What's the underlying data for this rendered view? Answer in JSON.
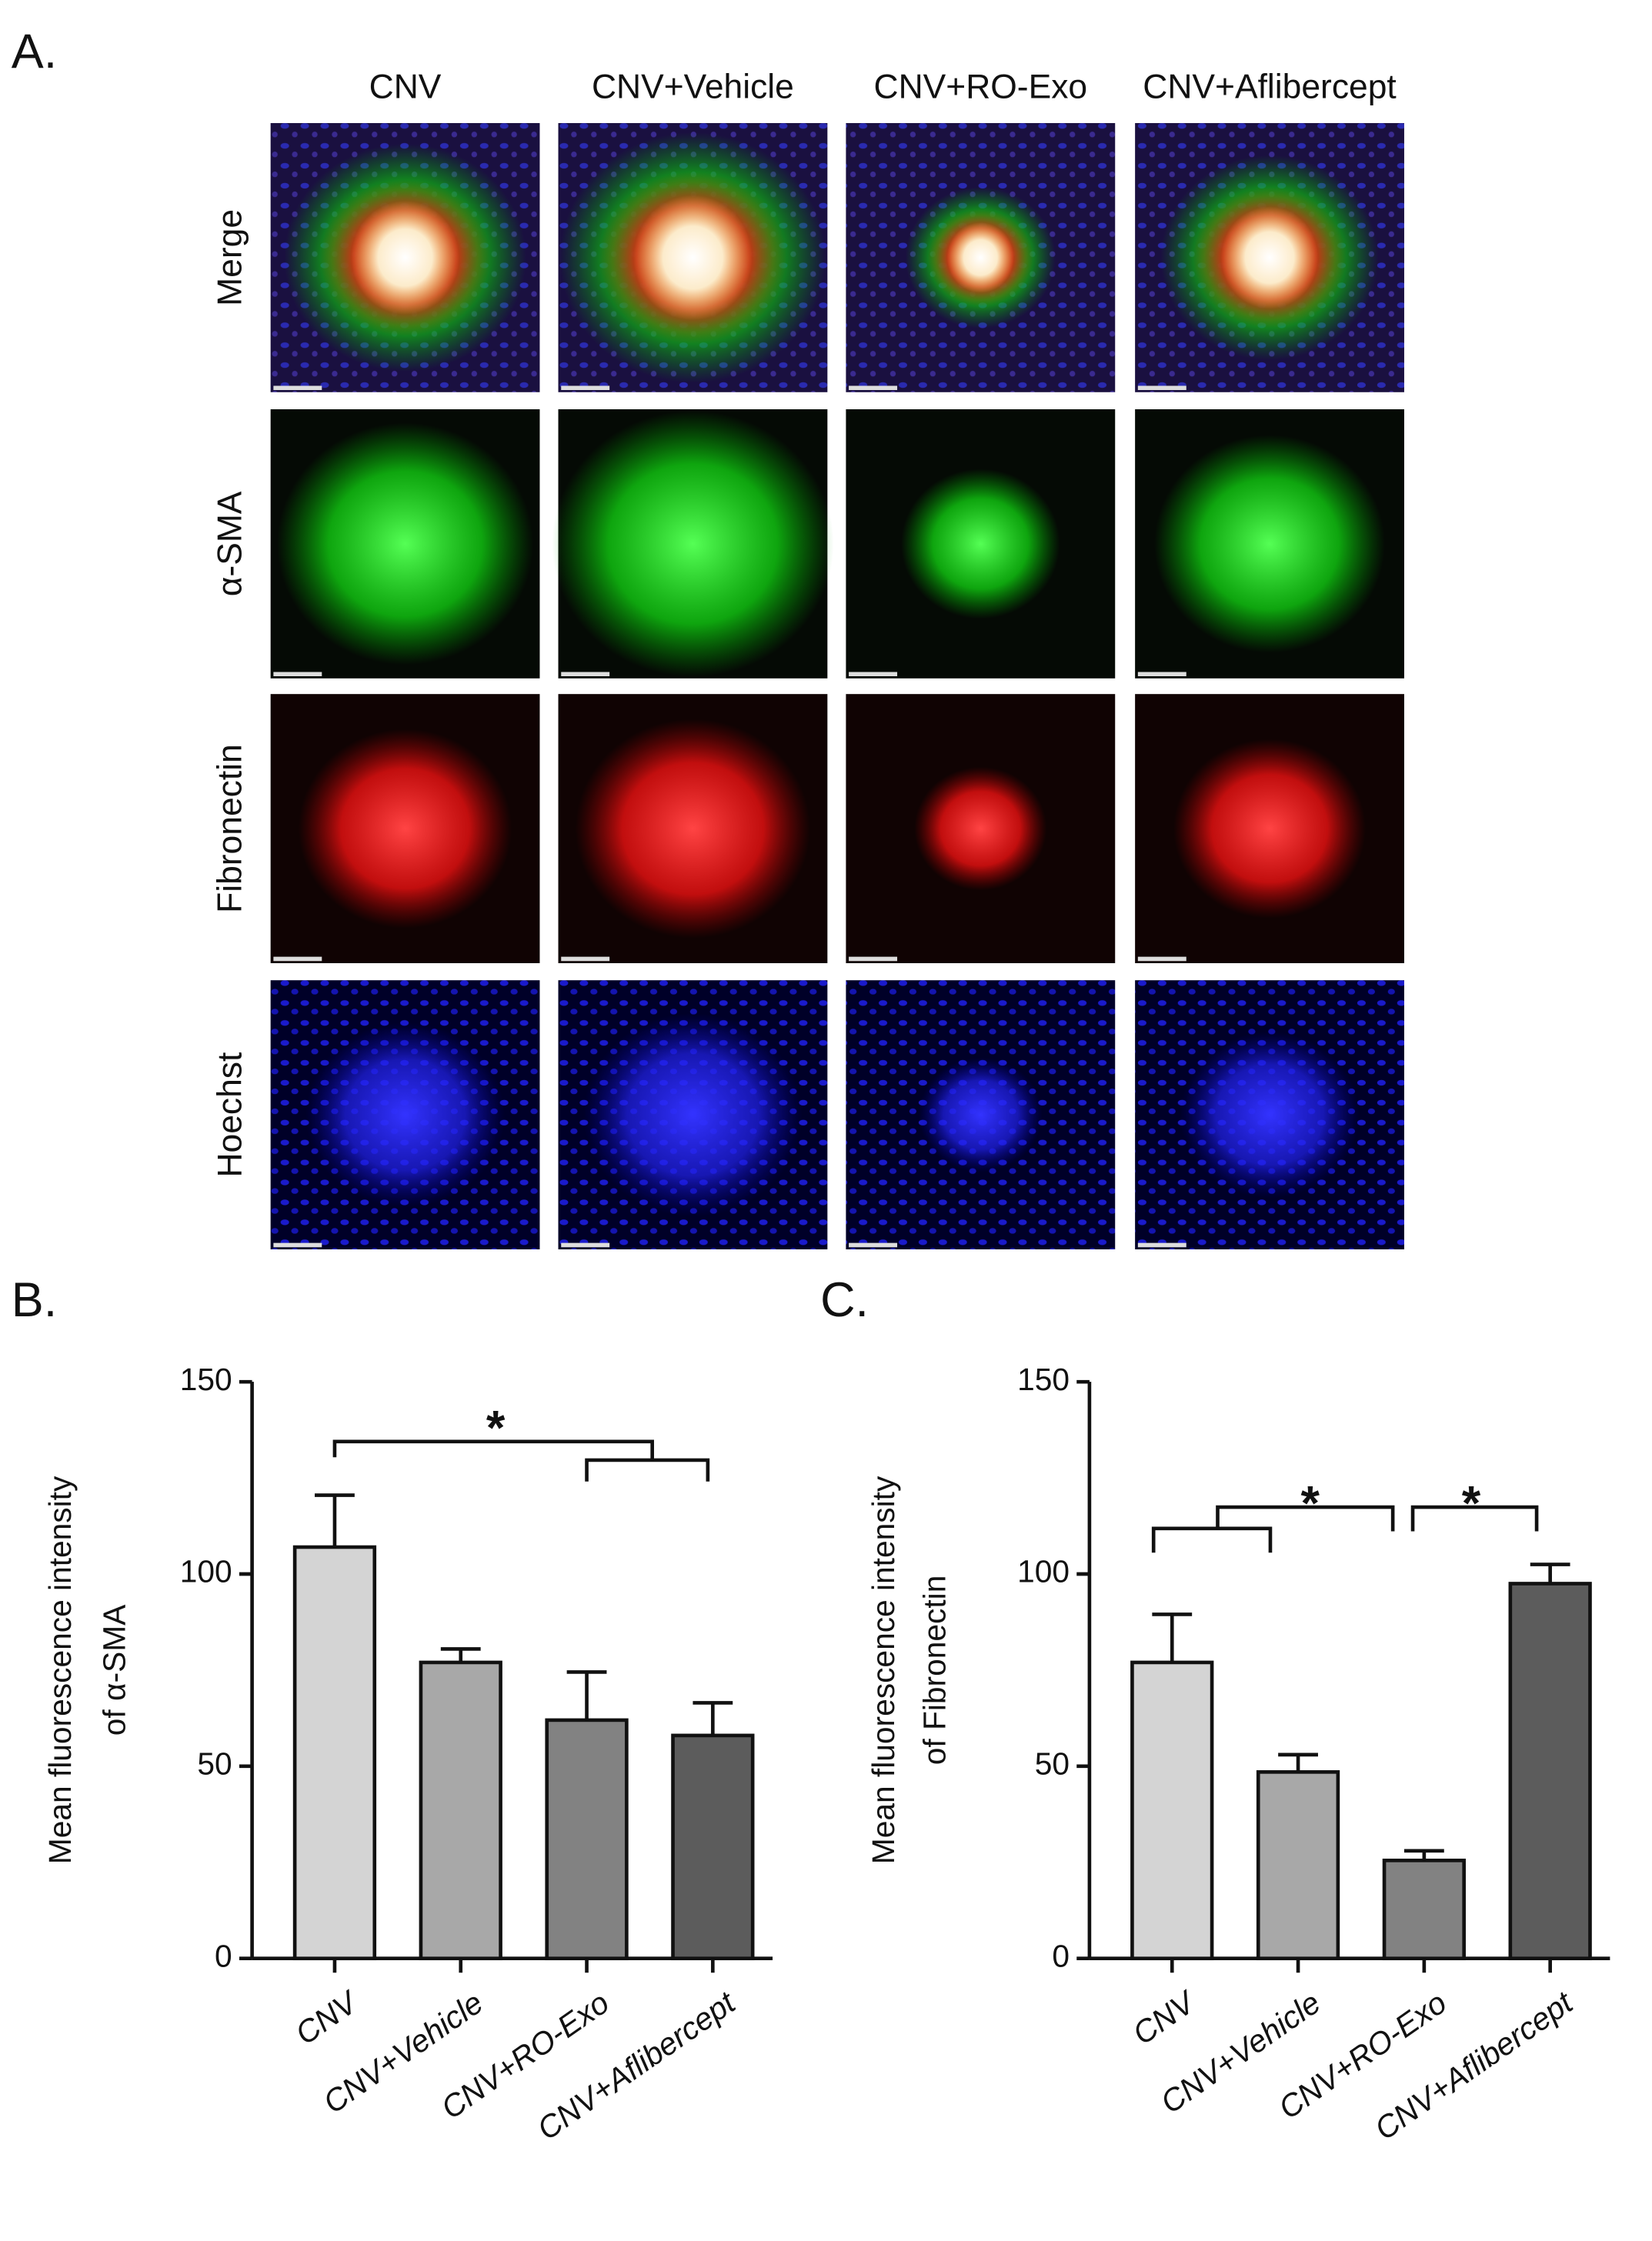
{
  "panel_a": {
    "label": "A.",
    "columns": [
      "CNV",
      "CNV+Vehicle",
      "CNV+RO-Exo",
      "CNV+Aflibercept"
    ],
    "rows": [
      {
        "label": "Merge",
        "color": "#111111"
      },
      {
        "label": "α-SMA",
        "color": "#22cc22"
      },
      {
        "label": "Fibronectin",
        "color": "#ee1111"
      },
      {
        "label": "Hoechst",
        "color": "#1a1aff"
      }
    ]
  },
  "chart_data": [
    {
      "type": "bar",
      "panel_label": "B.",
      "ylabel": [
        "Mean fluorescence intensity",
        "of  α-SMA"
      ],
      "categories": [
        "CNV",
        "CNV+Vehicle",
        "CNV+RO-Exo",
        "CNV+Aflibercept"
      ],
      "values": [
        107,
        77,
        62,
        58
      ],
      "errors": [
        13.5,
        3.5,
        12.5,
        8.5
      ],
      "colors": [
        "#d4d4d4",
        "#a8a8a8",
        "#828282",
        "#5c5c5c"
      ],
      "ylim": [
        0,
        150
      ],
      "yticks": [
        0,
        50,
        100,
        150
      ],
      "annotations": [
        "*"
      ]
    },
    {
      "type": "bar",
      "panel_label": "C.",
      "ylabel": [
        "Mean fluorescence intensity",
        "of  Fibronectin"
      ],
      "categories": [
        "CNV",
        "CNV+Vehicle",
        "CNV+RO-Exo",
        "CNV+Aflibercept"
      ],
      "values": [
        77,
        48.5,
        25.5,
        97.5
      ],
      "errors": [
        12.5,
        4.5,
        2.5,
        5
      ],
      "colors": [
        "#d4d4d4",
        "#a8a8a8",
        "#828282",
        "#5c5c5c"
      ],
      "ylim": [
        0,
        150
      ],
      "yticks": [
        0,
        50,
        100,
        150
      ],
      "annotations": [
        "*",
        "*"
      ]
    }
  ]
}
